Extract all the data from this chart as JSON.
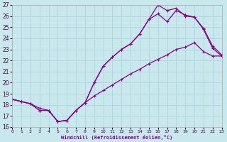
{
  "xlabel": "Windchill (Refroidissement éolien,°C)",
  "xlim": [
    0,
    23
  ],
  "ylim": [
    16,
    27
  ],
  "xticks": [
    0,
    1,
    2,
    3,
    4,
    5,
    6,
    7,
    8,
    9,
    10,
    11,
    12,
    13,
    14,
    15,
    16,
    17,
    18,
    19,
    20,
    21,
    22,
    23
  ],
  "yticks": [
    16,
    17,
    18,
    19,
    20,
    21,
    22,
    23,
    24,
    25,
    26,
    27
  ],
  "bg_color": "#c8e8ee",
  "line_color": "#880088",
  "grid_color": "#b0d8e0",
  "line1_x": [
    0,
    1,
    2,
    3,
    4,
    5,
    6,
    7,
    8,
    9,
    10,
    11,
    12,
    13,
    14,
    15,
    16,
    17,
    18,
    19,
    20,
    21,
    22,
    23
  ],
  "line1_y": [
    18.5,
    18.3,
    18.1,
    17.5,
    17.5,
    16.5,
    16.6,
    17.5,
    18.2,
    20.0,
    21.5,
    22.3,
    23.0,
    23.5,
    24.4,
    25.7,
    27.0,
    26.5,
    26.7,
    26.0,
    25.9,
    24.9,
    23.3,
    22.5
  ],
  "line2_x": [
    0,
    1,
    2,
    3,
    4,
    5,
    6,
    7,
    8,
    9,
    10,
    11,
    12,
    13,
    14,
    15,
    16,
    17,
    18,
    19,
    20,
    21,
    22,
    23
  ],
  "line2_y": [
    18.5,
    18.3,
    18.1,
    17.5,
    17.5,
    16.5,
    16.6,
    17.5,
    18.2,
    20.0,
    21.5,
    22.3,
    23.0,
    23.5,
    24.4,
    25.7,
    26.2,
    25.5,
    26.5,
    26.1,
    25.9,
    24.8,
    23.1,
    22.4
  ],
  "line3_x": [
    0,
    1,
    2,
    3,
    4,
    5,
    6,
    7,
    8,
    9,
    10,
    11,
    12,
    13,
    14,
    15,
    16,
    17,
    18,
    19,
    20,
    21,
    22,
    23
  ],
  "line3_y": [
    18.5,
    18.3,
    18.1,
    17.7,
    17.5,
    16.5,
    16.6,
    17.5,
    18.2,
    18.8,
    19.3,
    19.8,
    20.3,
    20.8,
    21.2,
    21.7,
    22.1,
    22.5,
    23.0,
    23.2,
    23.6,
    22.8,
    22.4,
    22.4
  ]
}
